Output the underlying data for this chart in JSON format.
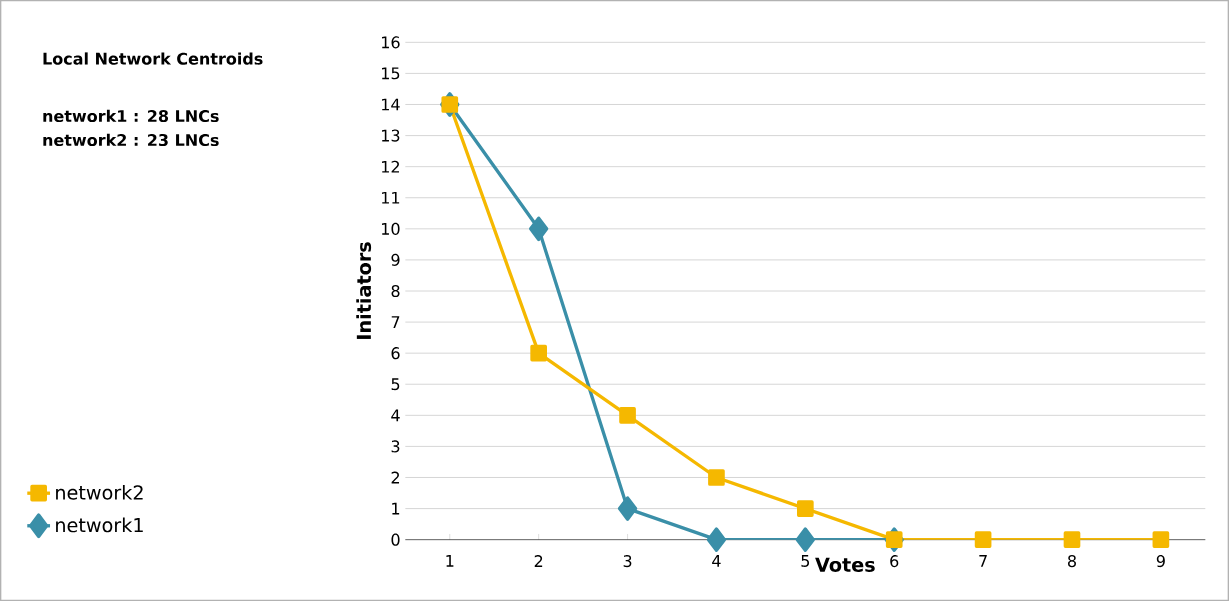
{
  "chart_data": {
    "type": "line",
    "title": "Local Network Centroids",
    "annotations": [
      "network1 : 28 LNCs",
      "network2 : 23 LNCs"
    ],
    "xlabel": "Votes",
    "ylabel": "Initiators",
    "categories": [
      "1",
      "2",
      "3",
      "4",
      "5",
      "6",
      "7",
      "8",
      "9"
    ],
    "series": [
      {
        "name": "network1",
        "color": "#3a8fa8",
        "marker": "diamond",
        "values": [
          14,
          10,
          1,
          0,
          0,
          0,
          null,
          null,
          null
        ]
      },
      {
        "name": "network2",
        "color": "#f5b800",
        "marker": "square",
        "values": [
          14,
          6,
          4,
          2,
          1,
          0,
          0,
          0,
          0
        ]
      }
    ],
    "ylim": [
      0,
      16
    ],
    "yticks": [
      0,
      1,
      2,
      3,
      4,
      5,
      6,
      7,
      8,
      9,
      10,
      11,
      12,
      13,
      14,
      15,
      16
    ],
    "grid": "y",
    "legend": "bottom left",
    "line_style": "solid"
  }
}
